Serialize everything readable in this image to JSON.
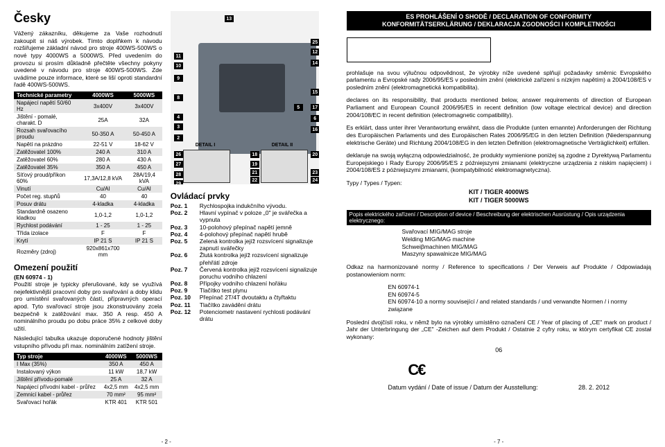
{
  "left": {
    "lang_title": "Česky",
    "intro": "Vážený zákazníku, děkujeme za Vaše rozhodnutí zakoupit si náš výrobek. Tímto doplňkem k návodu rozšiřujeme základní návod pro stroje 400WS-500WS o nové typy 4000WS a 5000WS. Před uvedením do provozu si prosím důkladně přečtěte všechny pokyny uvedené v návodu pro stroje 400WS-500WS. Zde uvádíme pouze informace, které se liší oproti standardní řadě 400WS-500WS.",
    "table1_header": [
      "Technické parametry",
      "4000WS",
      "5000WS"
    ],
    "table1_rows": [
      [
        "Napájecí napětí 50/60 Hz",
        "3x400V",
        "3x400V"
      ],
      [
        "Jištění - pomalé, charakt. D",
        "25A",
        "32A"
      ],
      [
        "Rozsah svařovacího proudu",
        "50-350 A",
        "50-450 A"
      ],
      [
        "Napětí na prázdno",
        "22-51 V",
        "18-62 V"
      ],
      [
        "Zatěžovatel 100%",
        "240 A",
        "310 A"
      ],
      [
        "Zatěžovatel 60%",
        "280 A",
        "430 A"
      ],
      [
        "Zatěžovatel 35%",
        "350 A",
        "450 A"
      ],
      [
        "Síťový proud/příkon 60%",
        "17,3A/12,8 kVA",
        "28A/19,4 kVA"
      ],
      [
        "Vinutí",
        "Cu/Al",
        "Cu/Al"
      ],
      [
        "Počet reg. stupňů",
        "40",
        "40"
      ],
      [
        "Posuv drátu",
        "4-kladka",
        "4-kladka"
      ],
      [
        "Standardně osazeno kladkou",
        "1,0-1,2",
        "1,0-1,2"
      ],
      [
        "Rychlost podávání",
        "1 - 25",
        "1 - 25"
      ],
      [
        "Třída izolace",
        "F",
        "F"
      ],
      [
        "Krytí",
        "IP 21 S",
        "IP 21 S"
      ],
      [
        "Rozměry (zdroj)",
        "920x861x700 mm",
        ""
      ]
    ],
    "omezeni_title": "Omezení použití",
    "omezeni_sub": "(EN 60974 - 1)",
    "omezeni_text": "Použití stroje je typicky přerušované, kdy se využívá nejefektivnější pracovní doby pro svařování a doby klidu pro umístění svařovaných částí, přípravných operací apod. Tyto svařovací stroje jsou zkonstruovány zcela bezpečně k zatěžování max. 350 A resp. 450 A nominálního proudu po dobu práce 35% z celkové doby užití.",
    "table2_intro": "Následující tabulka ukazuje doporučené hodnoty jištění vstupního přívodu při max. nominálním zatížení stroje.",
    "table2_header": [
      "Typ stroje",
      "4000WS",
      "5000WS"
    ],
    "table2_rows": [
      [
        "I Max (35%)",
        "350 A",
        "450 A"
      ],
      [
        "Instalovaný výkon",
        "11 kW",
        "18,7 kW"
      ],
      [
        "Jištění přívodu-pomalé",
        "25 A",
        "32 A"
      ],
      [
        "Napájecí přívodní kabel - průřez",
        "4x2,5 mm",
        "4x2,5 mm"
      ],
      [
        "Zemnicí kabel - průřez",
        "70 mm²",
        "95 mm²"
      ],
      [
        "Svařovací hořák",
        "KTR 401",
        "KTR 501"
      ]
    ],
    "ovladaci_title": "Ovládací prvky",
    "poz": [
      [
        "Poz. 1",
        "Rychlospojka indukčního vývodu."
      ],
      [
        "Poz. 2",
        "Hlavní vypínač v poloze „0\" je svářečka a vypnuta"
      ],
      [
        "Poz. 3",
        "10-polohový přepínač napětí jemně"
      ],
      [
        "Poz. 4",
        "4-polohový přepínač napětí hrubě"
      ],
      [
        "Poz. 5",
        "Zelená kontrolka jejíž rozsvícení signalizuje zapnutí svářečky"
      ],
      [
        "Poz. 6",
        "Žlutá kontrolka jejíž rozsvícení signalizuje přehřátí zdroje"
      ],
      [
        "Poz. 7",
        "Červená kontrolka jejíž rozsvícení signalizuje poruchu vodního chlazení"
      ],
      [
        "Poz. 8",
        "Přípojky vodního chlazení hořáku"
      ],
      [
        "Poz. 9",
        "Tlačítko test plynu"
      ],
      [
        "Poz. 10",
        "Přepínač 2T/4T dvoutaktu a čtyřtaktu"
      ],
      [
        "Poz. 11",
        "Tlačítko zavádění drátu"
      ],
      [
        "Poz. 12",
        "Potenciometr nastavení rychlosti podávání drátu"
      ]
    ],
    "callouts_left": [
      "11",
      "10",
      "9",
      "8"
    ],
    "callouts_top": [
      "13"
    ],
    "callouts_right_top": [
      "25",
      "12",
      "14",
      "15"
    ],
    "callouts_mid_left": [
      "4",
      "3",
      "2"
    ],
    "callouts_mid_right": [
      "6",
      "16"
    ],
    "callouts_mid_rightbar": [
      "5",
      "17"
    ],
    "callouts_bottom_left": [
      "26",
      "27",
      "28",
      "29"
    ],
    "callouts_bottom_right": [
      "18",
      "19",
      "21",
      "22",
      "23",
      "24",
      "20"
    ],
    "detail_labels": [
      "DETAIL I",
      "DETAIL II"
    ],
    "page_num": "- 2 -"
  },
  "right": {
    "decl_header_1": "ES PROHLÁŠENÍ O SHODĚ / DECLARATION OF CONFORMITY",
    "decl_header_2": "KONFORMITÄTSERKLÄRUNG / DEKLARACJA ZGODNOŚCI I KOMPLETNOŚCI",
    "para1": "prohlašuje na svou výlučnou odpovědnost, že výrobky níže uvedené splňují požadavky směrnic Evropského parlamentu a Evropské rady 2006/95/ES v posledním znění (elektrické zařízení s nízkým napětím) a 2004/108/ES v posledním znění (elektromagnetická kompatibilita).",
    "para2": "declares on its responsibility, that products mentioned below, answer requirements of direction of European Parliament and European Council 2006/95/ES in recent definition (low voltage electrical device) and direction 2004/108/EC in recent definition (electromagnetic compatibility).",
    "para3": "Es erklärt, dass unter ihrer Verantwortung erwähnt, dass die Produkte (unten ernannte) Anforderungen der Richtung des Europäischen Parlaments und des Europäischen Rates 2006/95/EG in den letzten Definition (Niederspannung elektrische Geräte) und Richtung 2004/108/EG in den letzten Definition (elektromagnetische Verträglichkeit) erfüllen.",
    "para4": "deklaruje na swoją wyłączną odpowiedzialność, że produkty wymienione poniżej są zgodne z Dyrektywą Parlamentu Europejskiego i Rady Europy 2006/95/ES z późniejszymi zmianami (elektryczne urządzenia z niskim napięciem) i 2004/108/ES z późniejszymi zmianami, (kompatybilność elektromagnetyczna).",
    "types_label": "Typy / Types / Typen:",
    "types": [
      "KIT / TIGER 4000WS",
      "KIT / TIGER 5000WS"
    ],
    "desc_bar": "Popis elektrického zařízení / Description of device / Beschreibung der elektrischen Ausrüstung / Opis urządzenia elektrycznego:",
    "desc_lines": [
      "Svařovací MIG/MAG stroje",
      "Welding MIG/MAG machine",
      "Schweiβmachinen MIG/MAG",
      "Maszyny spawalnicze MIG/MAG"
    ],
    "norm_label": "Odkaz na harmonizované normy / Reference to specifications / Der Verweis auf Produkte / Odpowiadają postanowieniom norm:",
    "norm_lines": [
      "EN 60974-1",
      "EN 60974-5",
      "EN 60974-10 a normy související / and related standards / und verwandte Normen / i normy związane"
    ],
    "year_label": "Poslední dvojčíslí roku, v němž bylo na výrobky umístěno označení CE / Year of placing of „CE\" mark on product / Jahr der Unterbringung der „CE\" -Zeichen auf dem Produkt / Ostatnie 2 cyfry roku, w którym certyfikat CE został wykonany:",
    "year_value": "06",
    "date_label": "Datum vydání / Date of issue / Datum der Ausstellung:",
    "date_value": "28. 2. 2012",
    "page_num": "- 7 -"
  }
}
